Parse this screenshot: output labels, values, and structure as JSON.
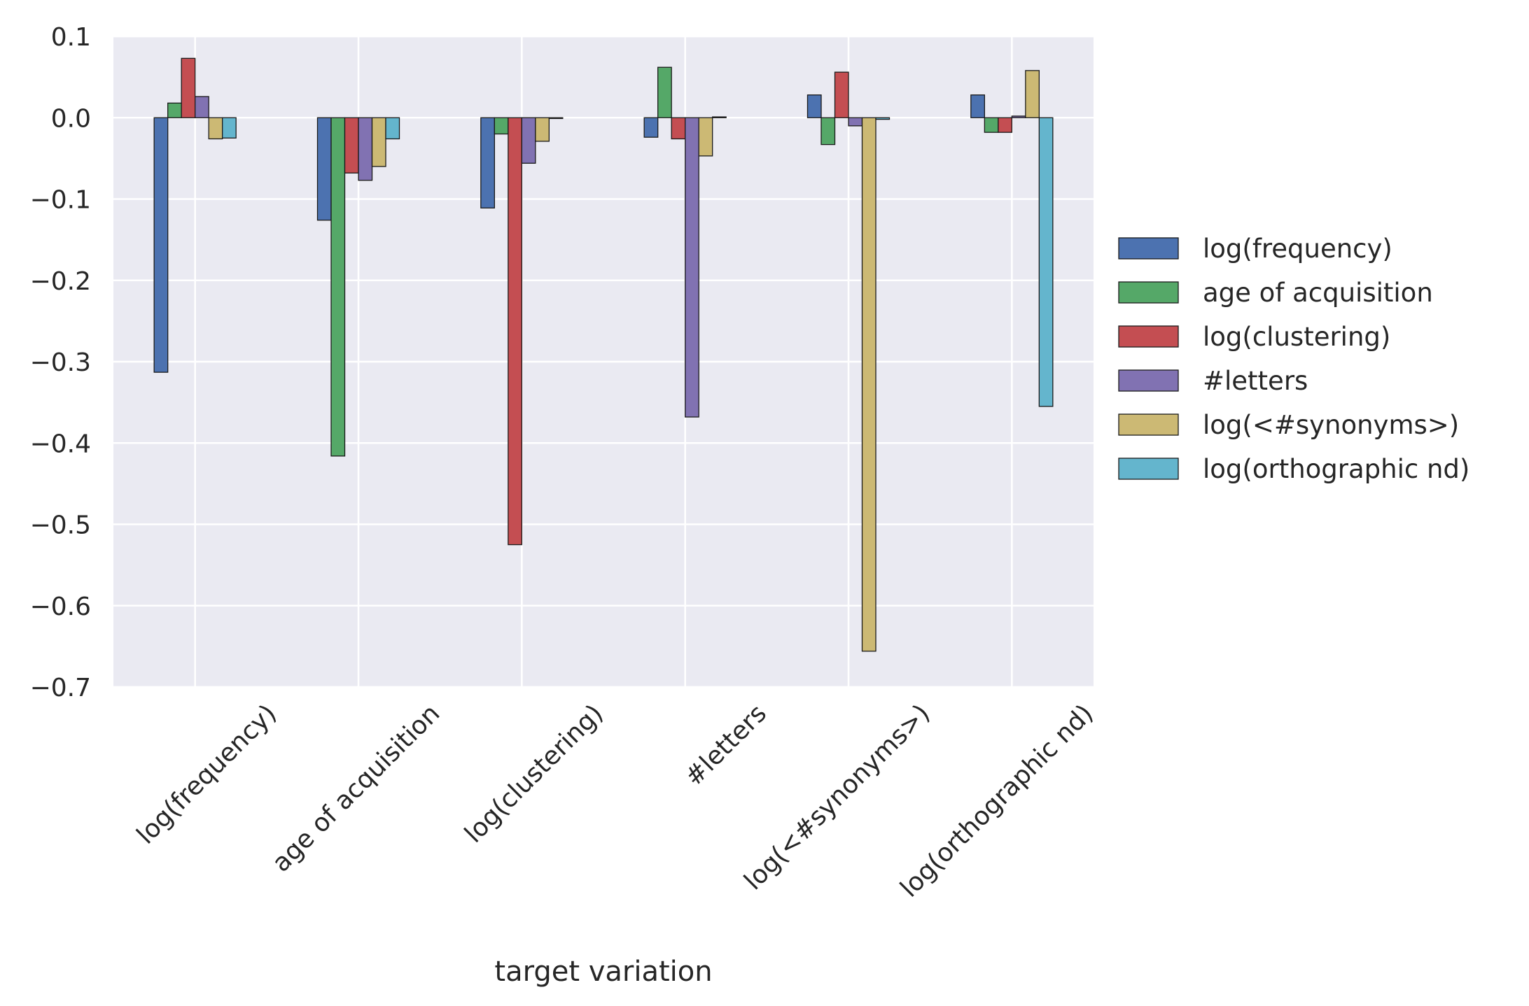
{
  "chart_data": {
    "type": "bar",
    "title": "",
    "xlabel": "target variation",
    "ylabel": "",
    "ylim": [
      -0.7,
      0.1
    ],
    "yticks": [
      0.1,
      0.0,
      -0.1,
      -0.2,
      -0.3,
      -0.4,
      -0.5,
      -0.6,
      -0.7
    ],
    "ytick_labels": [
      "0.1",
      "0.0",
      "−0.1",
      "−0.2",
      "−0.3",
      "−0.4",
      "−0.5",
      "−0.6",
      "−0.7"
    ],
    "categories": [
      "log(frequency)",
      "age of acquisition",
      "log(clustering)",
      "#letters",
      "log(<#synonyms>)",
      "log(orthographic nd)"
    ],
    "grid": true,
    "legend_position": "right",
    "series": [
      {
        "name": "log(frequency)",
        "color": "#4c72b0",
        "values": [
          -0.313,
          -0.126,
          -0.111,
          -0.024,
          0.028,
          0.028
        ]
      },
      {
        "name": "age of acquisition",
        "color": "#55a868",
        "values": [
          0.018,
          -0.416,
          -0.02,
          0.062,
          -0.033,
          -0.018
        ]
      },
      {
        "name": "log(clustering)",
        "color": "#c44e52",
        "values": [
          0.073,
          -0.068,
          -0.525,
          -0.026,
          0.056,
          -0.018
        ]
      },
      {
        "name": "#letters",
        "color": "#8172b2",
        "values": [
          0.026,
          -0.077,
          -0.056,
          -0.368,
          -0.01,
          0.002
        ]
      },
      {
        "name": "log(<#synonyms>)",
        "color": "#ccb974",
        "values": [
          -0.026,
          -0.06,
          -0.029,
          -0.047,
          -0.656,
          0.058
        ]
      },
      {
        "name": "log(orthographic nd)",
        "color": "#64b5cd",
        "values": [
          -0.025,
          -0.026,
          -0.001,
          0.001,
          -0.002,
          -0.355
        ]
      }
    ],
    "colors": {
      "plot_background": "#eaeaf2",
      "grid": "#ffffff",
      "bar_edge": "#1a1a1a"
    }
  }
}
